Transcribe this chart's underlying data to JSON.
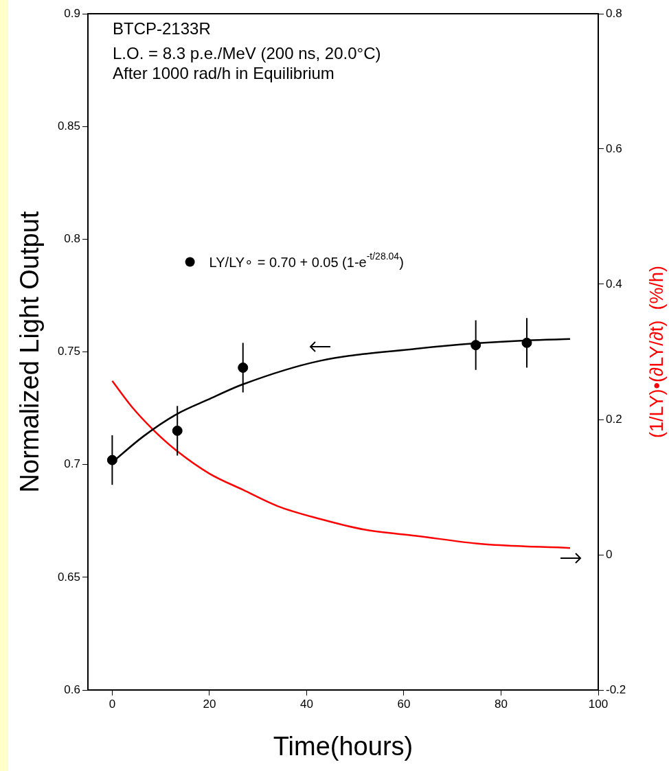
{
  "chart_data": {
    "type": "line",
    "title": "BTCP-2133R",
    "subtitle": "L.O. = 8.3 p.e./MeV (200 ns, 20.0°C)",
    "annotations": [
      "After 1000 rad/h in Equilibrium"
    ],
    "xlabel": "Time(hours)",
    "ylabel": "Normalized Light Output",
    "y2label": "(1/LY)•(∂LY/∂t)  (%/h)",
    "xlim": [
      -5,
      100
    ],
    "xticks": [
      0,
      20,
      40,
      60,
      80,
      100
    ],
    "ylim": [
      0.6,
      0.9
    ],
    "yticks": [
      0.6,
      0.65,
      0.7,
      0.75,
      0.8,
      0.85,
      0.9
    ],
    "y2lim": [
      -0.2,
      0.8
    ],
    "y2ticks": [
      -0.2,
      0,
      0.2,
      0.4,
      0.6,
      0.8
    ],
    "legend": "top left",
    "series": [
      {
        "type": "scatter",
        "marker": "circle",
        "name": "LY/LY∘ = 0.70 + 0.05 (1-e$^{-t/28.04}$)",
        "color": "#000000",
        "x": [
          0,
          13.4,
          26.9,
          74.8,
          85.3
        ],
        "values": [
          0.702,
          0.715,
          0.743,
          0.753,
          0.754
        ],
        "errors": [
          0.011,
          0.011,
          0.011,
          0.011,
          0.011
        ]
      },
      {
        "color": "#000000",
        "x": [
          0,
          6.4,
          13.4,
          19.6,
          26.9,
          42.7,
          62.5,
          74.8,
          85.3,
          94.2
        ],
        "values": [
          0.701,
          0.7125,
          0.7225,
          0.7287,
          0.7356,
          0.746,
          0.7514,
          0.7538,
          0.7551,
          0.7557
        ]
      },
      {
        "axis": "y2",
        "color": "#ff0000",
        "x": [
          0,
          4,
          8.4,
          13.4,
          20,
          26.9,
          34,
          42.7,
          52,
          62.5,
          75.9,
          94.2
        ],
        "values": [
          0.257,
          0.219,
          0.185,
          0.153,
          0.12,
          0.096,
          0.072,
          0.053,
          0.037,
          0.028,
          0.016,
          0.01
        ]
      }
    ]
  }
}
